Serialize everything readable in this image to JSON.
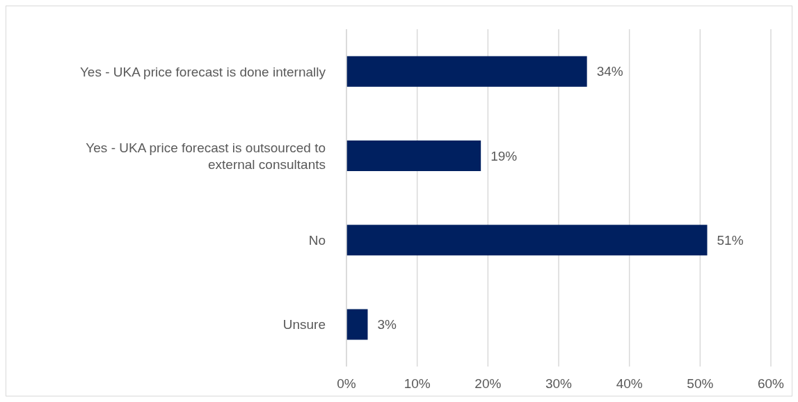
{
  "chart_data": {
    "type": "bar",
    "orientation": "horizontal",
    "categories": [
      "Yes - UKA price forecast is done internally",
      "Yes - UKA price forecast is outsourced to external consultants",
      "No",
      "Unsure"
    ],
    "values": [
      34,
      19,
      51,
      3
    ],
    "value_labels": [
      "34%",
      "19%",
      "51%",
      "3%"
    ],
    "color": "#002060",
    "xlim": [
      0,
      60
    ],
    "xticks": [
      {
        "value": 0,
        "label": "0%"
      },
      {
        "value": 10,
        "label": "10%"
      },
      {
        "value": 20,
        "label": "20%"
      },
      {
        "value": 30,
        "label": "30%"
      },
      {
        "value": 40,
        "label": "40%"
      },
      {
        "value": 50,
        "label": "50%"
      },
      {
        "value": 60,
        "label": "60%"
      }
    ],
    "grid": "x"
  }
}
